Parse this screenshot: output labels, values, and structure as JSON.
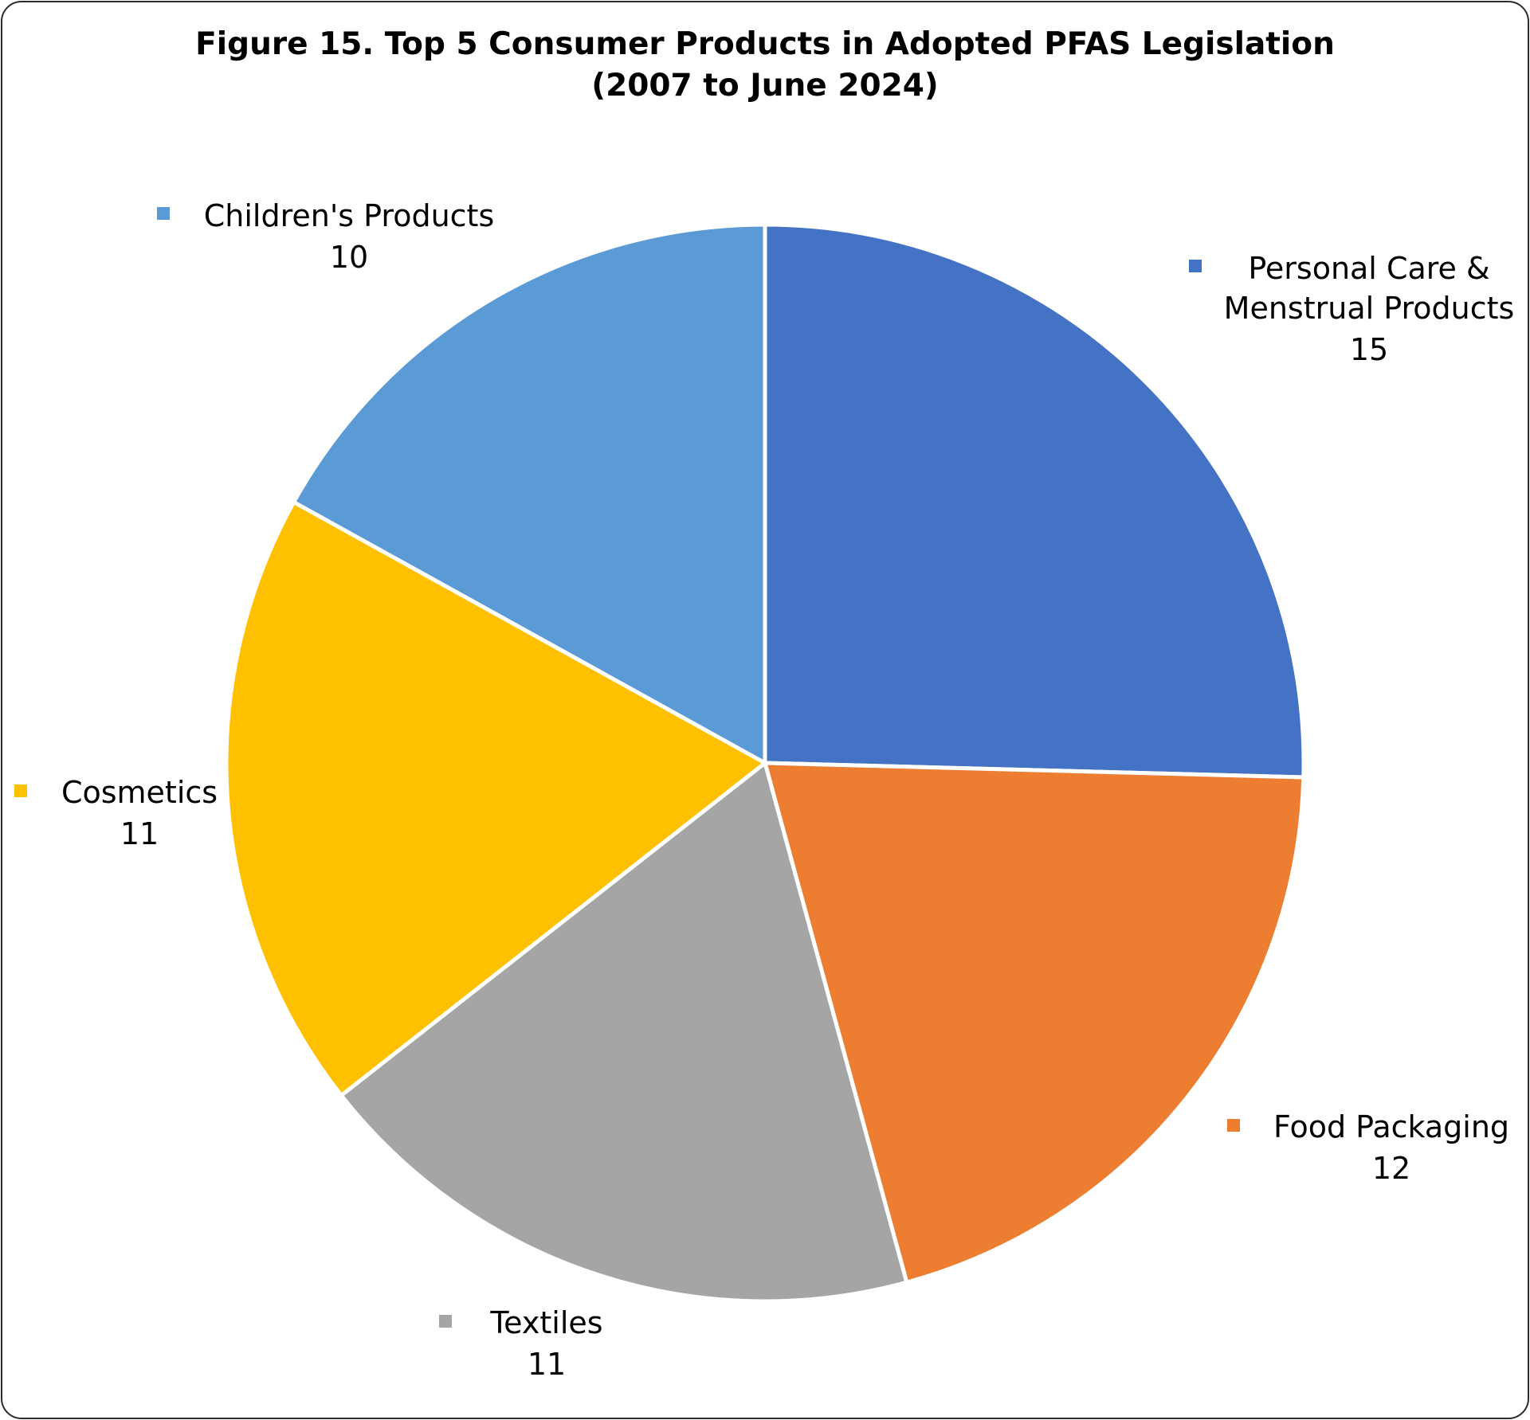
{
  "chart_data": {
    "type": "pie",
    "title_lines": [
      "Figure 15. Top 5 Consumer Products in Adopted PFAS Legislation",
      "(2007 to June 2024)"
    ],
    "slices": [
      {
        "label_lines": [
          "Personal Care &",
          "Menstrual Products"
        ],
        "value": 15,
        "color": "#4472C4"
      },
      {
        "label_lines": [
          "Food Packaging"
        ],
        "value": 12,
        "color": "#ED7D31"
      },
      {
        "label_lines": [
          "Textiles"
        ],
        "value": 11,
        "color": "#A5A5A5"
      },
      {
        "label_lines": [
          "Cosmetics"
        ],
        "value": 11,
        "color": "#FFC000"
      },
      {
        "label_lines": [
          "Children's Products"
        ],
        "value": 10,
        "color": "#5B9BD5"
      }
    ],
    "start_angle_deg": 0,
    "direction": "clockwise",
    "slice_border_color": "#ffffff"
  }
}
